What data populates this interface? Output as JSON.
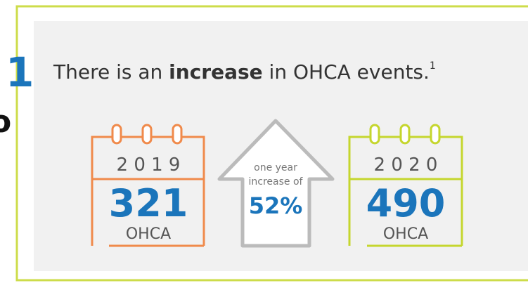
{
  "step": "1",
  "edge_letter": "o",
  "headline": {
    "before": "There is an ",
    "bold": "increase",
    "after": " in OHCA events.",
    "note": "1"
  },
  "calendars": [
    {
      "year": "2 0 1 9",
      "count": "321",
      "unit": "OHCA"
    },
    {
      "year": "2 0 2 0",
      "count": "490",
      "unit": "OHCA"
    }
  ],
  "arrow": {
    "line1": "one year",
    "line2": "increase of",
    "change": "52%"
  }
}
